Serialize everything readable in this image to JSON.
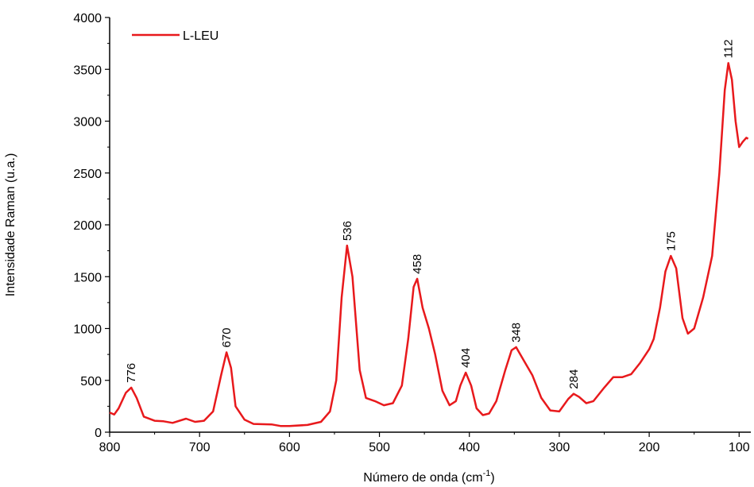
{
  "chart_data": {
    "type": "line",
    "xlabel": {
      "text": "Número de onda (cm",
      "superscript": "-1",
      "suffix": ")"
    },
    "ylabel": "Intensidade Raman (u.a.)",
    "x": [
      800,
      795,
      790,
      782,
      776,
      770,
      762,
      750,
      740,
      730,
      715,
      705,
      695,
      685,
      676,
      670,
      665,
      660,
      650,
      640,
      620,
      610,
      600,
      580,
      565,
      555,
      548,
      542,
      536,
      530,
      522,
      515,
      505,
      495,
      485,
      475,
      468,
      462,
      458,
      452,
      445,
      438,
      430,
      422,
      415,
      410,
      404,
      398,
      392,
      385,
      378,
      370,
      360,
      353,
      348,
      340,
      330,
      320,
      310,
      300,
      290,
      284,
      278,
      270,
      262,
      250,
      240,
      230,
      220,
      210,
      200,
      195,
      188,
      182,
      176,
      170,
      163,
      157,
      150,
      140,
      130,
      122,
      116,
      112,
      108,
      104,
      100,
      96,
      92,
      90
    ],
    "series": [
      {
        "name": "L-LEU",
        "color": "#e8191c",
        "values": [
          190,
          170,
          230,
          380,
          430,
          330,
          150,
          110,
          105,
          90,
          130,
          100,
          110,
          200,
          550,
          770,
          620,
          250,
          120,
          80,
          75,
          60,
          60,
          70,
          100,
          200,
          500,
          1300,
          1800,
          1500,
          600,
          330,
          300,
          260,
          280,
          450,
          900,
          1400,
          1480,
          1200,
          1000,
          750,
          400,
          260,
          300,
          450,
          575,
          450,
          230,
          165,
          180,
          300,
          600,
          790,
          820,
          700,
          550,
          330,
          210,
          200,
          320,
          370,
          340,
          280,
          300,
          430,
          530,
          530,
          560,
          670,
          800,
          900,
          1200,
          1550,
          1700,
          1580,
          1100,
          950,
          1000,
          1300,
          1700,
          2500,
          3300,
          3560,
          3400,
          3000,
          2750,
          2800,
          2840,
          2830
        ]
      }
    ],
    "xlim": [
      800,
      87
    ],
    "xticks": [
      800,
      700,
      600,
      500,
      400,
      300,
      200,
      100
    ],
    "x_minor_ticks": [
      750,
      650,
      550,
      450,
      350,
      250,
      150
    ],
    "ylim": [
      0,
      4000
    ],
    "yticks": [
      0,
      500,
      1000,
      1500,
      2000,
      2500,
      3000,
      3500,
      4000
    ],
    "y_minor_ticks": [
      250,
      750,
      1250,
      1750,
      2250,
      2750,
      3250,
      3750
    ],
    "legend": "upper left",
    "annotations": [
      {
        "text": "776",
        "x": 776,
        "y": 430
      },
      {
        "text": "670",
        "x": 670,
        "y": 770
      },
      {
        "text": "536",
        "x": 536,
        "y": 1800
      },
      {
        "text": "458",
        "x": 458,
        "y": 1480
      },
      {
        "text": "404",
        "x": 404,
        "y": 575
      },
      {
        "text": "348",
        "x": 348,
        "y": 820
      },
      {
        "text": "284",
        "x": 284,
        "y": 370
      },
      {
        "text": "175",
        "x": 176,
        "y": 1700
      },
      {
        "text": "112",
        "x": 112,
        "y": 3560
      }
    ]
  }
}
